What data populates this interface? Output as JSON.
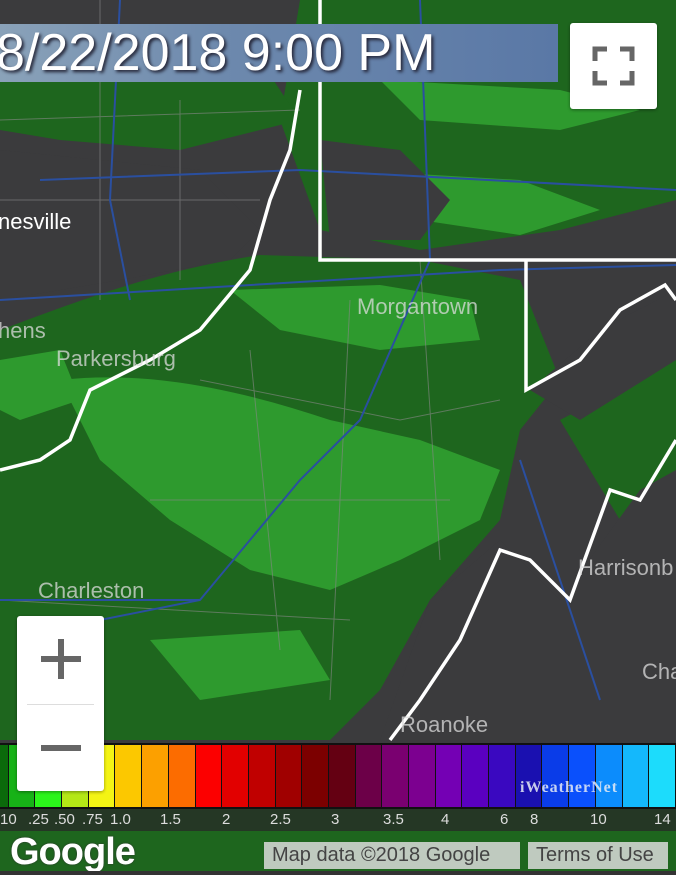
{
  "timestamp": "8/22/2018 9:00 PM",
  "controls": {
    "fullscreen_icon": "fullscreen-icon",
    "zoom_in_icon": "plus-icon",
    "zoom_out_icon": "minus-icon"
  },
  "map_labels": {
    "city1": "nesville",
    "city2": "hens",
    "city3": "Parkersburg",
    "city4": "Morgantown",
    "city5": "Charleston",
    "city6": "Harrisonb",
    "city7": "Cha",
    "city8": "Roanoke"
  },
  "legend": {
    "colors": [
      "#0b6a0b",
      "#17b217",
      "#2bf41b",
      "#b4e816",
      "#f4f414",
      "#fcc800",
      "#fca000",
      "#fc6c00",
      "#fc0000",
      "#e20000",
      "#c00000",
      "#a00000",
      "#7c0000",
      "#640012",
      "#6c0048",
      "#7a0070",
      "#7c0090",
      "#7400b4",
      "#5a00c0",
      "#3a08c0",
      "#1a10b0",
      "#0a3ce8",
      "#0a50fc",
      "#0c8cfc",
      "#14b8fc",
      "#1cdcfc"
    ],
    "labels": [
      "10",
      ".25",
      ".50",
      ".75",
      "1.0",
      "1.5",
      "2",
      "2.5",
      "3",
      "3.5",
      "4",
      "6",
      "8",
      "10",
      "14"
    ],
    "watermark": "iWeatherNet"
  },
  "branding": "Google",
  "attribution": {
    "map_data": "Map data ©2018 Google",
    "terms": "Terms of Use"
  },
  "colors": {
    "background": "#3b3b3d",
    "precip_light": "#1f6b1f",
    "precip_medium": "#2e9a2e",
    "state_border": "#ffffff",
    "county_border": "#8a8a8a",
    "highway": "#2a4fa0"
  }
}
